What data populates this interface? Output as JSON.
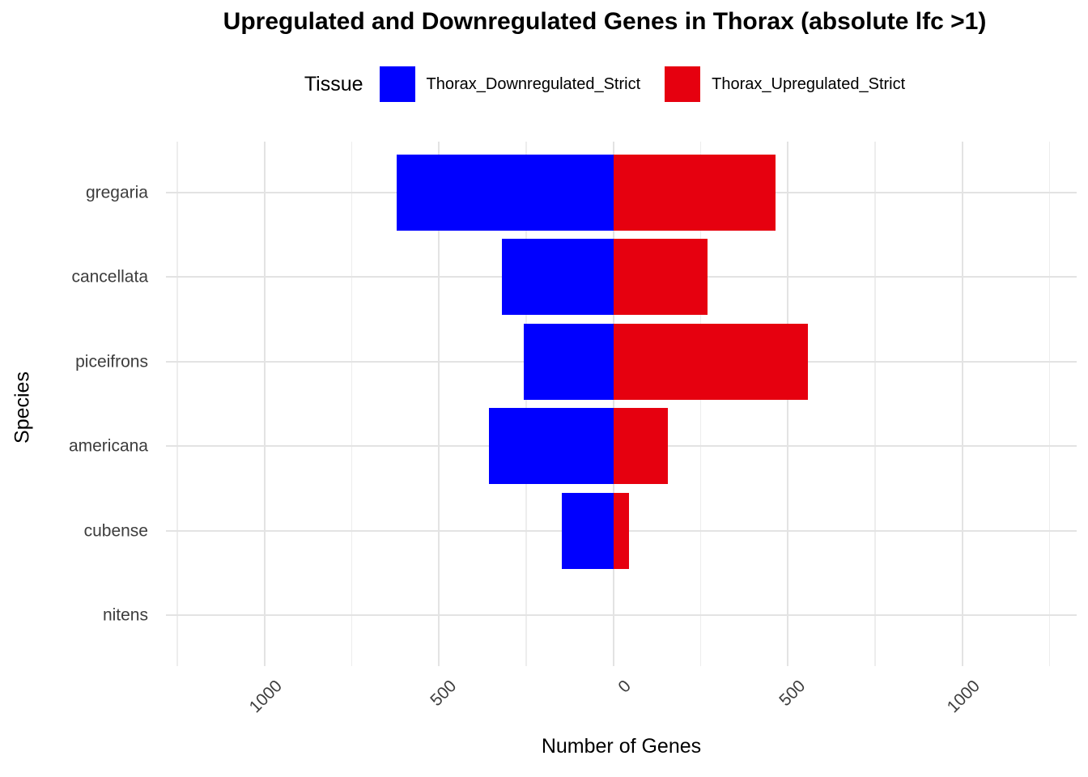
{
  "title": "Upregulated and Downregulated Genes in Thorax (absolute lfc >1)",
  "legend": {
    "title": "Tissue",
    "position": "top",
    "items": [
      {
        "label": "Thorax_Downregulated_Strict",
        "color": "#0000FF"
      },
      {
        "label": "Thorax_Upregulated_Strict",
        "color": "#E6000F"
      }
    ]
  },
  "axes": {
    "x": {
      "label": "Number of Genes",
      "range": [
        -1282,
        1328
      ],
      "ticks": [
        -1000,
        -500,
        0,
        500,
        1000
      ],
      "tick_labels": [
        "1000",
        "500",
        "0",
        "500",
        "1000"
      ],
      "minor_ticks": [
        -1250,
        -750,
        -250,
        250,
        750,
        1250
      ]
    },
    "y": {
      "label": "Species",
      "categories": [
        "gregaria",
        "cancellata",
        "piceifrons",
        "americana",
        "cubense",
        "nitens"
      ]
    }
  },
  "chart_data": {
    "type": "bar",
    "orientation": "horizontal-diverging",
    "title": "Upregulated and Downregulated Genes in Thorax (absolute lfc >1)",
    "xlabel": "Number of Genes",
    "ylabel": "Species",
    "xlim": [
      -1282,
      1328
    ],
    "grid": true,
    "legend_position": "top",
    "categories": [
      "gregaria",
      "cancellata",
      "piceifrons",
      "americana",
      "cubense",
      "nitens"
    ],
    "series": [
      {
        "name": "Thorax_Downregulated_Strict",
        "color": "#0000FF",
        "direction": "negative",
        "values": [
          620,
          320,
          257,
          357,
          148,
          0
        ]
      },
      {
        "name": "Thorax_Upregulated_Strict",
        "color": "#E6000F",
        "direction": "positive",
        "values": [
          466,
          271,
          558,
          157,
          45,
          0
        ]
      }
    ]
  }
}
